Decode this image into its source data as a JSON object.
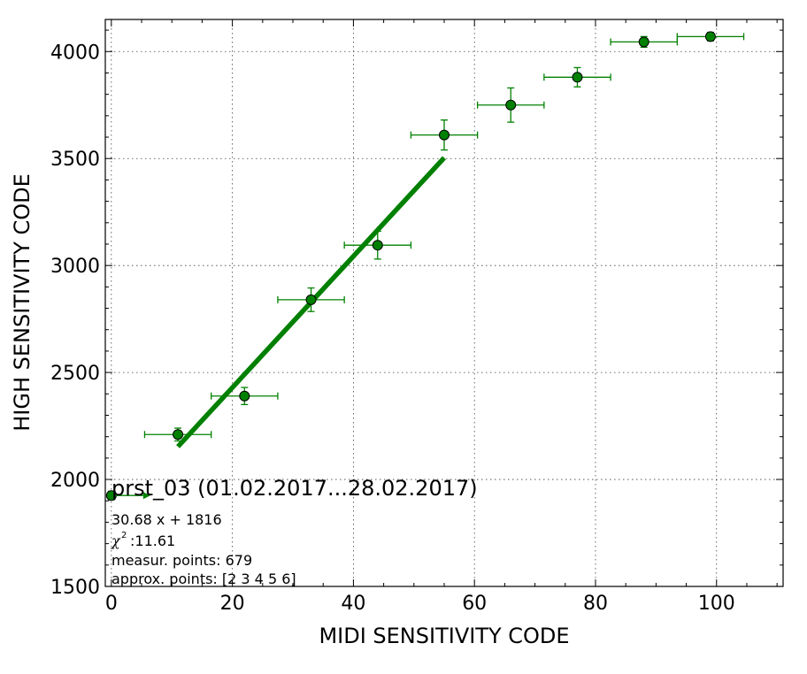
{
  "chart_data": {
    "type": "scatter",
    "xlabel": "MIDI SENSITIVITY CODE",
    "ylabel": "HIGH SENSITIVITY CODE",
    "xlim": [
      -1,
      111
    ],
    "ylim": [
      1500,
      4150
    ],
    "xticks": [
      0,
      20,
      40,
      60,
      80,
      100
    ],
    "yticks": [
      1500,
      2000,
      2500,
      3000,
      3500,
      4000
    ],
    "grid": true,
    "colors": {
      "series": "#008000",
      "marker_edge": "#000000"
    },
    "points": [
      {
        "x": 0,
        "y": 1925,
        "xerr": 0,
        "yerr": 20
      },
      {
        "x": 11,
        "y": 2210,
        "xerr": 5.5,
        "yerr": 30
      },
      {
        "x": 22,
        "y": 2390,
        "xerr": 5.5,
        "yerr": 40
      },
      {
        "x": 33,
        "y": 2840,
        "xerr": 5.5,
        "yerr": 55
      },
      {
        "x": 44,
        "y": 3095,
        "xerr": 5.5,
        "yerr": 65
      },
      {
        "x": 55,
        "y": 3610,
        "xerr": 5.5,
        "yerr": 70
      },
      {
        "x": 66,
        "y": 3750,
        "xerr": 5.5,
        "yerr": 80
      },
      {
        "x": 77,
        "y": 3880,
        "xerr": 5.5,
        "yerr": 45
      },
      {
        "x": 88,
        "y": 4045,
        "xerr": 5.5,
        "yerr": 25
      },
      {
        "x": 99,
        "y": 4070,
        "xerr": 5.5,
        "yerr": 20
      }
    ],
    "fit": {
      "slope": 30.68,
      "intercept": 1816,
      "x_start": 11,
      "x_end": 55
    },
    "annotation": {
      "title": "prst_03 (01.02.2017...28.02.2017)",
      "equation": "30.68 x + 1816",
      "chi2_symbol": "χ",
      "chi2_value": ":11.61",
      "measur_points": "measur. points: 679",
      "approx_points": "approx. points: [2 3 4 5 6]"
    }
  }
}
